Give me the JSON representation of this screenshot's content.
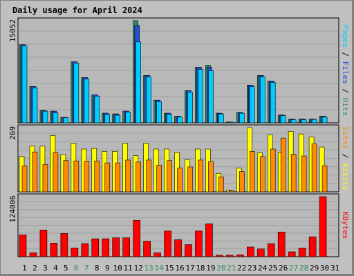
{
  "chart_data": {
    "type": "bar",
    "title": "Daily usage for April 2024",
    "days": [
      1,
      2,
      3,
      4,
      5,
      6,
      7,
      8,
      9,
      10,
      11,
      12,
      13,
      14,
      15,
      16,
      17,
      18,
      19,
      20,
      21,
      22,
      23,
      24,
      25,
      26,
      27,
      28,
      29,
      30,
      31
    ],
    "weekend_days": [
      6,
      7,
      13,
      14,
      20,
      21,
      27,
      28
    ],
    "colors": {
      "hits": "#2e8b57",
      "files": "#1e50dc",
      "pages": "#00ccff",
      "visits": "#ffff00",
      "sites": "#ff8c00",
      "kbytes": "#ff0000",
      "weekend_label": "#2e8b57",
      "weekday_label": "#000000",
      "title": "#0000cc",
      "frame_bg": "#c0c0c0",
      "panel_bg": "#b8b8b8"
    },
    "panels": [
      {
        "max_label": "15052",
        "axis_title_parts": [
          {
            "text": "Pages",
            "color": "#00ccff"
          },
          {
            "text": " / ",
            "color": "#000000"
          },
          {
            "text": "Files",
            "color": "#1e50dc"
          },
          {
            "text": " / ",
            "color": "#000000"
          },
          {
            "text": "Hits",
            "color": "#2e8b57"
          }
        ],
        "series": [
          {
            "name": "Hits",
            "color": "#2e8b57",
            "values": [
              11400,
              5300,
              1800,
              1700,
              800,
              8900,
              6600,
              4100,
              1400,
              1300,
              1700,
              14900,
              6900,
              3300,
              1400,
              950,
              4700,
              8100,
              8400,
              1400,
              120,
              1500,
              5500,
              6900,
              6100,
              1150,
              550,
              550,
              550,
              950,
              0
            ]
          },
          {
            "name": "Files",
            "color": "#1e50dc",
            "values": [
              11400,
              5300,
              1800,
              1700,
              800,
              8900,
              6600,
              4100,
              1400,
              1300,
              1700,
              14200,
              6900,
              3300,
              1400,
              950,
              4700,
              8100,
              8100,
              1400,
              120,
              1500,
              5500,
              6900,
              6100,
              1150,
              550,
              550,
              550,
              950,
              0
            ]
          },
          {
            "name": "Pages",
            "color": "#00ccff",
            "values": [
              11200,
              5100,
              1700,
              1450,
              750,
              8700,
              6400,
              3900,
              1250,
              1100,
              1550,
              11800,
              6700,
              3100,
              1250,
              850,
              4500,
              7800,
              7600,
              1300,
              100,
              1400,
              5300,
              6700,
              5900,
              1050,
              450,
              450,
              500,
              850,
              0
            ]
          }
        ]
      },
      {
        "max_label": "269",
        "axis_title_parts": [
          {
            "text": "Sites",
            "color": "#ff8c00"
          },
          {
            "text": " / ",
            "color": "#000000"
          },
          {
            "text": "Visits",
            "color": "#ffff00"
          }
        ],
        "series": [
          {
            "name": "Visits",
            "color": "#ffff00",
            "values": [
              122,
              158,
              158,
              195,
              130,
              168,
              148,
              150,
              140,
              140,
              168,
              125,
              168,
              148,
              148,
              136,
              112,
              148,
              148,
              64,
              5,
              82,
              222,
              135,
              197,
              136,
              209,
              200,
              190,
              155,
              0
            ]
          },
          {
            "name": "Sites",
            "color": "#ff8c00",
            "values": [
              90,
              138,
              95,
              136,
              108,
              107,
              106,
              107,
              100,
              100,
              110,
              103,
              110,
              92,
              108,
              82,
              86,
              110,
              105,
              52,
              4,
              70,
              140,
              122,
              148,
              186,
              130,
              124,
              166,
              90,
              0
            ]
          }
        ]
      },
      {
        "max_label": "124006",
        "axis_title_parts": [
          {
            "text": "KBytes",
            "color": "#ff0000"
          }
        ],
        "series": [
          {
            "name": "KBytes",
            "color": "#ff0000",
            "values": [
              45000,
              8000,
              55000,
              28000,
              48000,
              18000,
              27000,
              37000,
              37000,
              39000,
              39000,
              75000,
              32000,
              8000,
              53000,
              35000,
              25000,
              53000,
              68000,
              3000,
              3000,
              4000,
              20000,
              16000,
              27000,
              51000,
              10000,
              18000,
              41000,
              124000,
              0
            ]
          }
        ]
      }
    ]
  }
}
